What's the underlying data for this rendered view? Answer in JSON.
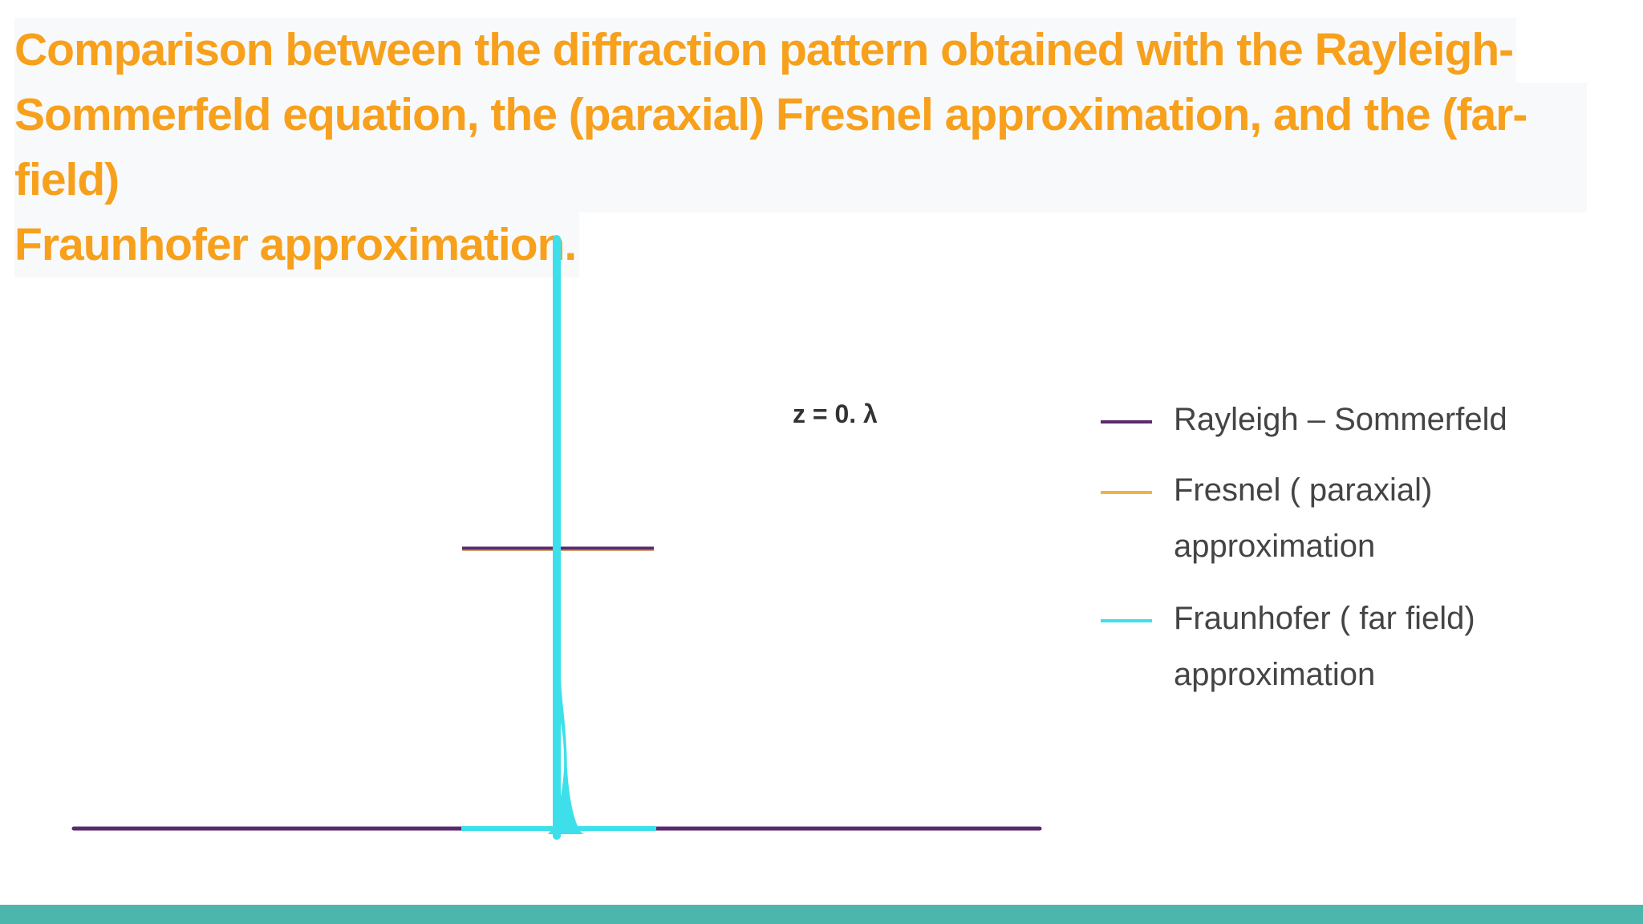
{
  "slide": {
    "title_lines": [
      "Comparison between the diffraction pattern obtained with the Rayleigh-",
      "Sommerfeld equation, the (paraxial) Fresnel approximation, and the (far-field)",
      "Fraunhofer approximation."
    ],
    "accent_color": "#f7a01c",
    "bar_color": "#4db6ac"
  },
  "chart_data": {
    "type": "line",
    "annotation": "z = 0. λ",
    "grid": false,
    "legend_placement": "right",
    "series": [
      {
        "name": "Rayleigh – Sommerfeld",
        "color": "#5b2a6e",
        "style": "rectangular aperture profile"
      },
      {
        "name": "Fresnel ( paraxial) approximation",
        "color": "#f5b23c",
        "style": "rectangular aperture profile"
      },
      {
        "name": "Fraunhofer ( far field) approximation",
        "color": "#3de0ea",
        "style": "narrow central peak"
      }
    ]
  }
}
